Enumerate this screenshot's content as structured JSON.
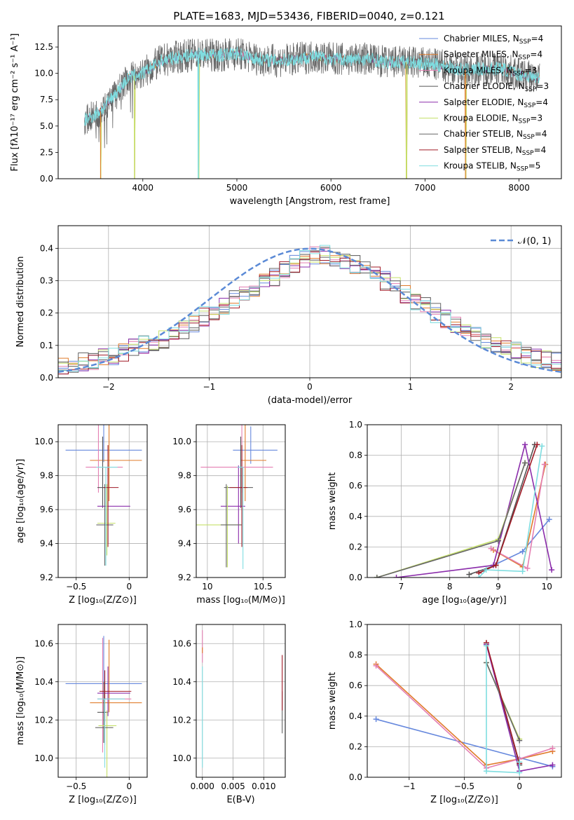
{
  "figure": {
    "title": "PLATE=1683, MJD=53436, FIBERID=0040, z=0.121"
  },
  "colors": {
    "chabrier_miles": "#6688dd",
    "salpeter_miles": "#e07b2a",
    "kroupa_miles": "#e47fb2",
    "chabrier_elodie": "#555555",
    "salpeter_elodie": "#8b2dab",
    "kroupa_elodie": "#c5e06a",
    "chabrier_stelib": "#666666",
    "salpeter_stelib": "#a01a26",
    "kroupa_stelib": "#7fdde0",
    "grid": "#b0b0b0",
    "normal_curve": "#5b8ad6"
  },
  "chart_data": [
    {
      "id": "spectrum",
      "type": "line",
      "title": "PLATE=1683, MJD=53436, FIBERID=0040, z=0.121",
      "xlabel": "wavelength [Angstrom, rest frame]",
      "ylabel": "Flux [fλ10⁻¹⁷ erg cm⁻² s⁻¹ A⁻¹]",
      "xlim": [
        3100,
        8450
      ],
      "ylim": [
        0,
        14.5
      ],
      "xticks": [
        4000,
        5000,
        6000,
        7000,
        8000
      ],
      "yticks": [
        0.0,
        2.5,
        5.0,
        7.5,
        10.0,
        12.5
      ],
      "grid": false,
      "legend_position": "right",
      "continuum": {
        "x": [
          3400,
          3550,
          3700,
          3850,
          4000,
          4200,
          4400,
          4600,
          4800,
          5000,
          5200,
          5400,
          5600,
          5800,
          6000,
          6200,
          6400,
          6600,
          6800,
          7000,
          7200,
          7400,
          7600,
          7800,
          8000,
          8200
        ],
        "y": [
          5.6,
          6.4,
          8.0,
          9.6,
          10.0,
          11.2,
          11.6,
          11.8,
          11.7,
          11.9,
          11.4,
          11.2,
          11.3,
          11.6,
          11.4,
          11.3,
          11.4,
          11.0,
          11.1,
          10.9,
          10.7,
          10.3,
          10.4,
          10.5,
          9.9,
          9.6
        ]
      },
      "observed_noise_amplitude": 1.6,
      "dips": [
        {
          "x": 3550,
          "y": 0
        },
        {
          "x": 3910,
          "y": 0
        },
        {
          "x": 4590,
          "y": 0
        },
        {
          "x": 6800,
          "y": 0
        },
        {
          "x": 7430,
          "y": 0
        }
      ],
      "legend": [
        {
          "label": "Chabrier MILES, N_SSP=4",
          "color_key": "chabrier_miles"
        },
        {
          "label": "Salpeter MILES, N_SSP=4",
          "color_key": "salpeter_miles"
        },
        {
          "label": "Kroupa MILES, N_SSP=3",
          "color_key": "kroupa_miles"
        },
        {
          "label": "Chabrier ELODIE, N_SSP=3",
          "color_key": "chabrier_elodie"
        },
        {
          "label": "Salpeter ELODIE, N_SSP=4",
          "color_key": "salpeter_elodie"
        },
        {
          "label": "Kroupa ELODIE, N_SSP=3",
          "color_key": "kroupa_elodie"
        },
        {
          "label": "Chabrier STELIB, N_SSP=4",
          "color_key": "chabrier_stelib"
        },
        {
          "label": "Salpeter STELIB, N_SSP=4",
          "color_key": "salpeter_stelib"
        },
        {
          "label": "Kroupa STELIB, N_SSP=5",
          "color_key": "kroupa_stelib"
        }
      ]
    },
    {
      "id": "residuals",
      "type": "bar",
      "xlabel": "(data-model)/error",
      "ylabel": "Normed distribution",
      "xlim": [
        -2.5,
        2.5
      ],
      "ylim": [
        0,
        0.47
      ],
      "xticks": [
        -2,
        -1,
        0,
        1,
        2
      ],
      "yticks": [
        0.0,
        0.1,
        0.2,
        0.3,
        0.4
      ],
      "grid": true,
      "legend_position": "top-right",
      "legend": [
        {
          "label": "𝒩(0, 1)",
          "color_key": "normal_curve"
        }
      ],
      "bin_width": 0.1,
      "bin_start": -2.5,
      "histogram_envelope": [
        0.04,
        0.045,
        0.05,
        0.055,
        0.06,
        0.07,
        0.08,
        0.09,
        0.1,
        0.11,
        0.12,
        0.14,
        0.15,
        0.17,
        0.19,
        0.2,
        0.22,
        0.24,
        0.26,
        0.28,
        0.3,
        0.31,
        0.33,
        0.35,
        0.37,
        0.38,
        0.38,
        0.37,
        0.36,
        0.35,
        0.34,
        0.32,
        0.3,
        0.28,
        0.26,
        0.24,
        0.22,
        0.2,
        0.18,
        0.16,
        0.15,
        0.13,
        0.11,
        0.1,
        0.09,
        0.08,
        0.07,
        0.06,
        0.055,
        0.05
      ],
      "series_count": 9
    },
    {
      "id": "age_vs_Z",
      "type": "scatter",
      "xlabel": "Z [log₁₀(Z/Z⊙)]",
      "ylabel": "age  [log₁₀(age/yr)]",
      "xlim": [
        -0.67,
        0.17
      ],
      "ylim": [
        9.2,
        10.1
      ],
      "xticks": [
        -0.5,
        0.0
      ],
      "yticks": [
        9.2,
        9.4,
        9.6,
        9.8,
        10.0
      ],
      "grid": true,
      "points": [
        {
          "color_key": "chabrier_miles",
          "x": -0.24,
          "xerr": [
            0.36,
            0.36
          ],
          "y": 9.95,
          "yerr": [
            0.07,
            0.15
          ]
        },
        {
          "color_key": "salpeter_miles",
          "x": -0.19,
          "xerr": [
            0.18,
            0.31
          ],
          "y": 9.89,
          "yerr": [
            0.24,
            0.24
          ]
        },
        {
          "color_key": "kroupa_miles",
          "x": -0.29,
          "xerr": [
            0.12,
            0.23
          ],
          "y": 9.85,
          "yerr": [
            0.15,
            0.25
          ]
        },
        {
          "color_key": "chabrier_elodie",
          "x": -0.25,
          "xerr": [
            0.05,
            0.03
          ],
          "y": 9.73,
          "yerr": [
            0.12,
            0.3
          ]
        },
        {
          "color_key": "salpeter_elodie",
          "x": -0.2,
          "xerr": [
            0.1,
            0.21
          ],
          "y": 9.62,
          "yerr": [
            0.22,
            0.24
          ]
        },
        {
          "color_key": "kroupa_elodie",
          "x": -0.21,
          "xerr": [
            0.09,
            0.08
          ],
          "y": 9.52,
          "yerr": [
            0.19,
            0.23
          ]
        },
        {
          "color_key": "chabrier_stelib",
          "x": -0.23,
          "xerr": [
            0.08,
            0.08
          ],
          "y": 9.51,
          "yerr": [
            0.24,
            0.24
          ]
        },
        {
          "color_key": "salpeter_stelib",
          "x": -0.2,
          "xerr": [
            0.04,
            0.1
          ],
          "y": 9.73,
          "yerr": [
            0.35,
            0.25
          ]
        },
        {
          "color_key": "kroupa_stelib",
          "x": -0.22,
          "xerr": [
            0.09,
            0.11
          ],
          "y": 9.85,
          "yerr": [
            0.58,
            0.0
          ]
        }
      ]
    },
    {
      "id": "age_vs_mass",
      "type": "scatter",
      "xlabel": "mass [log₁₀(M/M⊙)]",
      "ylabel": "",
      "xlim": [
        9.9,
        10.7
      ],
      "ylim": [
        9.2,
        10.1
      ],
      "xticks": [
        10.0,
        10.5
      ],
      "yticks": [
        9.2,
        9.4,
        9.6,
        9.8,
        10.0
      ],
      "grid": true,
      "points": [
        {
          "color_key": "chabrier_miles",
          "x": 10.39,
          "xerr": [
            0.16,
            0.24
          ],
          "y": 9.95,
          "yerr": [
            0.08,
            0.14
          ]
        },
        {
          "color_key": "salpeter_miles",
          "x": 10.34,
          "xerr": [
            0.04,
            0.19
          ],
          "y": 9.89,
          "yerr": [
            0.24,
            0.24
          ]
        },
        {
          "color_key": "kroupa_miles",
          "x": 10.31,
          "xerr": [
            0.37,
            0.28
          ],
          "y": 9.85,
          "yerr": [
            0.15,
            0.25
          ]
        },
        {
          "color_key": "chabrier_elodie",
          "x": 10.3,
          "xerr": [
            0.15,
            0.11
          ],
          "y": 9.73,
          "yerr": [
            0.12,
            0.3
          ]
        },
        {
          "color_key": "salpeter_elodie",
          "x": 10.28,
          "xerr": [
            0.16,
            0.06
          ],
          "y": 9.62,
          "yerr": [
            0.22,
            0.24
          ]
        },
        {
          "color_key": "kroupa_elodie",
          "x": 10.18,
          "xerr": [
            0.28,
            0.13
          ],
          "y": 9.51,
          "yerr": [
            0.25,
            0.23
          ]
        },
        {
          "color_key": "chabrier_stelib",
          "x": 10.17,
          "xerr": [
            0.05,
            0.14
          ],
          "y": 9.51,
          "yerr": [
            0.25,
            0.24
          ]
        },
        {
          "color_key": "salpeter_stelib",
          "x": 10.31,
          "xerr": [
            0.11,
            0.05
          ],
          "y": 9.73,
          "yerr": [
            0.35,
            0.25
          ]
        },
        {
          "color_key": "kroupa_stelib",
          "x": 10.32,
          "xerr": [
            0.05,
            0.0
          ],
          "y": 9.85,
          "yerr": [
            0.6,
            0.0
          ]
        }
      ]
    },
    {
      "id": "weight_vs_age",
      "type": "line",
      "xlabel": "age  [log₁₀(age/yr)]",
      "ylabel": "mass weight",
      "xlim": [
        6.3,
        10.3
      ],
      "ylim": [
        0,
        1.0
      ],
      "xticks": [
        7,
        8,
        9,
        10
      ],
      "yticks": [
        0.0,
        0.2,
        0.4,
        0.6,
        0.8,
        1.0
      ],
      "grid": true,
      "series": [
        {
          "color_key": "chabrier_miles",
          "x": [
            8.9,
            9.5,
            10.05
          ],
          "y": [
            0.08,
            0.17,
            0.38
          ]
        },
        {
          "color_key": "salpeter_miles",
          "x": [
            8.9,
            9.5,
            9.97
          ],
          "y": [
            0.18,
            0.07,
            0.74
          ]
        },
        {
          "color_key": "kroupa_miles",
          "x": [
            8.85,
            9.6,
            9.95
          ],
          "y": [
            0.19,
            0.06,
            0.74
          ]
        },
        {
          "color_key": "chabrier_elodie",
          "x": [
            8.4,
            8.95,
            9.75
          ],
          "y": [
            0.02,
            0.08,
            0.87
          ]
        },
        {
          "color_key": "salpeter_elodie",
          "x": [
            6.9,
            8.9,
            9.55,
            10.1
          ],
          "y": [
            0.0,
            0.08,
            0.87,
            0.05
          ]
        },
        {
          "color_key": "kroupa_elodie",
          "x": [
            6.5,
            9.0,
            9.55
          ],
          "y": [
            0.0,
            0.25,
            0.75
          ]
        },
        {
          "color_key": "chabrier_stelib",
          "x": [
            6.5,
            9.0,
            9.55
          ],
          "y": [
            0.0,
            0.24,
            0.75
          ]
        },
        {
          "color_key": "salpeter_stelib",
          "x": [
            8.6,
            8.95,
            9.8
          ],
          "y": [
            0.03,
            0.08,
            0.87
          ]
        },
        {
          "color_key": "kroupa_stelib",
          "x": [
            8.6,
            8.75,
            9.5,
            9.9
          ],
          "y": [
            0.0,
            0.05,
            0.04,
            0.86
          ]
        }
      ]
    },
    {
      "id": "mass_vs_Z",
      "type": "scatter",
      "xlabel": "Z [log₁₀(Z/Z⊙)]",
      "ylabel": "mass [log₁₀(M/M⊙)]",
      "xlim": [
        -0.67,
        0.17
      ],
      "ylim": [
        9.9,
        10.7
      ],
      "xticks": [
        -0.5,
        0.0
      ],
      "yticks": [
        10.0,
        10.2,
        10.4,
        10.6
      ],
      "grid": true,
      "points": [
        {
          "color_key": "chabrier_miles",
          "x": -0.24,
          "xerr": [
            0.36,
            0.36
          ],
          "y": 10.39,
          "yerr": [
            0.16,
            0.25
          ]
        },
        {
          "color_key": "salpeter_miles",
          "x": -0.19,
          "xerr": [
            0.18,
            0.31
          ],
          "y": 10.29,
          "yerr": [
            0.05,
            0.33
          ]
        },
        {
          "color_key": "kroupa_miles",
          "x": -0.25,
          "xerr": [
            0.05,
            0.27
          ],
          "y": 10.31,
          "yerr": [
            0.28,
            0.32
          ]
        },
        {
          "color_key": "chabrier_elodie",
          "x": -0.24,
          "xerr": [
            0.06,
            0.04
          ],
          "y": 10.24,
          "yerr": [
            0.16,
            0.16
          ]
        },
        {
          "color_key": "salpeter_elodie",
          "x": -0.2,
          "xerr": [
            0.1,
            0.21
          ],
          "y": 10.34,
          "yerr": [
            0.12,
            0.14
          ]
        },
        {
          "color_key": "kroupa_elodie",
          "x": -0.21,
          "xerr": [
            0.08,
            0.09
          ],
          "y": 10.17,
          "yerr": [
            0.27,
            0.08
          ]
        },
        {
          "color_key": "chabrier_stelib",
          "x": -0.23,
          "xerr": [
            0.09,
            0.08
          ],
          "y": 10.16,
          "yerr": [
            0.09,
            0.07
          ]
        },
        {
          "color_key": "salpeter_stelib",
          "x": -0.23,
          "xerr": [
            0.05,
            0.25
          ],
          "y": 10.35,
          "yerr": [
            0.16,
            0.11
          ]
        },
        {
          "color_key": "kroupa_stelib",
          "x": -0.23,
          "xerr": [
            0.07,
            0.19
          ],
          "y": 10.31,
          "yerr": [
            0.36,
            0.0
          ]
        }
      ]
    },
    {
      "id": "mass_vs_ebv",
      "type": "scatter",
      "xlabel": "E(B-V)",
      "ylabel": "",
      "xlim": [
        -0.001,
        0.0135
      ],
      "ylim": [
        9.9,
        10.7
      ],
      "xticks": [
        0.0,
        0.005,
        0.01
      ],
      "xticklabels": [
        "0.000",
        "0.005",
        "0.010"
      ],
      "yticks": [
        10.0,
        10.2,
        10.4,
        10.6
      ],
      "grid": true,
      "points": [
        {
          "color_key": "kroupa_miles",
          "x": 0.0,
          "y": 10.55,
          "yerr": [
            0.05,
            0.12
          ]
        },
        {
          "color_key": "kroupa_stelib",
          "x": 0.0,
          "y": 10.2,
          "yerr": [
            0.25,
            0.28
          ]
        },
        {
          "color_key": "salpeter_miles",
          "x": 0.0,
          "y": 10.55,
          "yerr": [
            0.0,
            0.03
          ]
        },
        {
          "color_key": "chabrier_stelib",
          "x": 0.013,
          "y": 10.28,
          "yerr": [
            0.15,
            0.07
          ]
        },
        {
          "color_key": "salpeter_stelib",
          "x": 0.013,
          "y": 10.35,
          "yerr": [
            0.1,
            0.19
          ]
        }
      ]
    },
    {
      "id": "weight_vs_Z",
      "type": "line",
      "xlabel": "Z [log₁₀(Z/Z⊙)]",
      "ylabel": "mass weight",
      "xlim": [
        -1.38,
        0.38
      ],
      "ylim": [
        0,
        1.0
      ],
      "xticks": [
        -1.0,
        -0.5,
        0.0
      ],
      "yticks": [
        0.0,
        0.2,
        0.4,
        0.6,
        0.8,
        1.0
      ],
      "grid": true,
      "series": [
        {
          "color_key": "chabrier_miles",
          "x": [
            -1.3,
            0.3
          ],
          "y": [
            0.38,
            0.07
          ]
        },
        {
          "color_key": "salpeter_miles",
          "x": [
            -1.3,
            -0.3,
            0.0,
            0.3
          ],
          "y": [
            0.74,
            0.08,
            0.12,
            0.17
          ]
        },
        {
          "color_key": "kroupa_miles",
          "x": [
            -1.3,
            -0.3,
            0.0,
            0.3
          ],
          "y": [
            0.73,
            0.06,
            0.12,
            0.19
          ]
        },
        {
          "color_key": "chabrier_elodie",
          "x": [
            -0.3,
            0.0
          ],
          "y": [
            0.87,
            0.08
          ]
        },
        {
          "color_key": "salpeter_elodie",
          "x": [
            -0.3,
            0.0,
            0.3
          ],
          "y": [
            0.87,
            0.04,
            0.08
          ]
        },
        {
          "color_key": "kroupa_elodie",
          "x": [
            -0.3,
            0.0
          ],
          "y": [
            0.75,
            0.25
          ]
        },
        {
          "color_key": "chabrier_stelib",
          "x": [
            -0.3,
            0.0
          ],
          "y": [
            0.75,
            0.24
          ]
        },
        {
          "color_key": "salpeter_stelib",
          "x": [
            -0.3,
            0.0
          ],
          "y": [
            0.88,
            0.09
          ]
        },
        {
          "color_key": "kroupa_stelib",
          "x": [
            -0.3,
            -0.3,
            0.0,
            0.0
          ],
          "y": [
            0.86,
            0.04,
            0.03,
            0.1
          ]
        }
      ]
    }
  ]
}
